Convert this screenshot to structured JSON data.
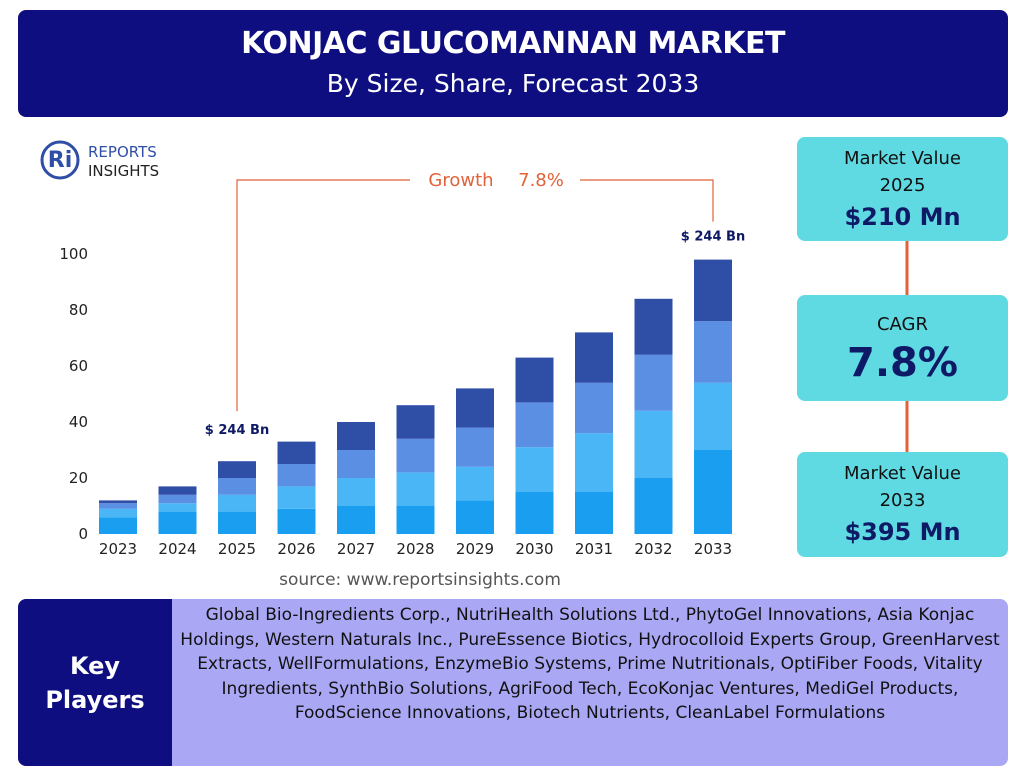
{
  "header": {
    "title": "KONJAC GLUCOMANNAN MARKET",
    "subtitle": "By Size, Share, Forecast 2033"
  },
  "logo": {
    "mark": "Ri",
    "line1": "REPORTS",
    "line2": "INSIGHTS"
  },
  "chart_data": {
    "type": "stacked_bar",
    "categories": [
      "2023",
      "2024",
      "2025",
      "2026",
      "2027",
      "2028",
      "2029",
      "2030",
      "2031",
      "2032",
      "2033"
    ],
    "series": [
      {
        "color": "#1a9ff0",
        "values": [
          6,
          8,
          8,
          9,
          10,
          10,
          12,
          15,
          15,
          20,
          30
        ]
      },
      {
        "color": "#4bb6f6",
        "values": [
          3,
          3,
          6,
          8,
          10,
          12,
          12,
          16,
          21,
          24,
          24
        ]
      },
      {
        "color": "#5a8fe3",
        "values": [
          2,
          3,
          6,
          8,
          10,
          12,
          14,
          16,
          18,
          20,
          22
        ]
      },
      {
        "color": "#2f4ea6",
        "values": [
          1,
          3,
          6,
          8,
          10,
          12,
          14,
          16,
          18,
          20,
          22
        ]
      }
    ],
    "ylim": [
      0,
      100
    ],
    "yticks": [
      0,
      20,
      40,
      60,
      80,
      100
    ],
    "grid": false,
    "annotations": [
      "$ 244 Bn",
      "$ 244 Bn"
    ],
    "growth_label": "Growth",
    "growth_value": "7.8%",
    "source": "source: www.reportsinsights.com"
  },
  "cards": [
    {
      "label": "Market Value 2025",
      "value": "$210 Mn"
    },
    {
      "label": "CAGR",
      "value": "7.8%"
    },
    {
      "label": "Market Value 2033",
      "value": "$395 Mn"
    }
  ],
  "key_players": {
    "title": "Key Players",
    "text": "Global Bio-Ingredients Corp., NutriHealth Solutions Ltd., PhytoGel Innovations, Asia Konjac Holdings, Western Naturals Inc., PureEssence Biotics, Hydrocolloid Experts Group, GreenHarvest Extracts, WellFormulations, EnzymeBio Systems, Prime Nutritionals, OptiFiber Foods, Vitality Ingredients, SynthBio Solutions, AgriFood Tech, EcoKonjac Ventures, MediGel Products, FoodScience Innovations, Biotech Nutrients, CleanLabel Formulations"
  }
}
